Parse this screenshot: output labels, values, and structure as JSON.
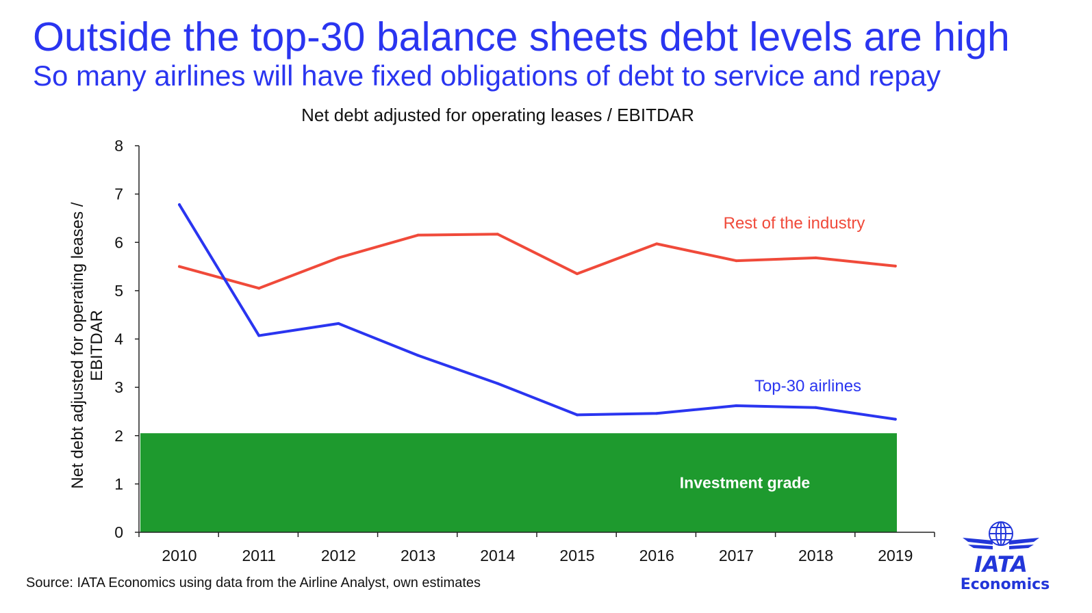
{
  "page": {
    "headline": "Outside the top-30 balance sheets debt levels are high",
    "subheadline": "So many airlines will have fixed obligations of debt to service and repay",
    "source": "Source: IATA Economics using data from the Airline Analyst, own estimates",
    "logo": {
      "text": "IATA",
      "subtext": "Economics",
      "icon": "iata-globe-wings-icon",
      "color": "#2236d9"
    }
  },
  "chart_data": {
    "type": "line",
    "title": "Net debt adjusted for operating leases / EBITDAR",
    "ylabel_lines": [
      "Net debt adjusted for operating leases /",
      "EBITDAR"
    ],
    "xlabel": "",
    "categories": [
      "2010",
      "2011",
      "2012",
      "2013",
      "2014",
      "2015",
      "2016",
      "2017",
      "2018",
      "2019"
    ],
    "ylim": [
      0,
      8
    ],
    "yticks": [
      0,
      1,
      2,
      3,
      4,
      5,
      6,
      7,
      8
    ],
    "grid": false,
    "series": [
      {
        "name": "Rest of the industry",
        "color": "#f04a3a",
        "values": [
          5.5,
          5.05,
          5.68,
          6.15,
          6.17,
          5.35,
          5.97,
          5.62,
          5.68,
          5.51
        ]
      },
      {
        "name": "Top-30 airlines",
        "color": "#2a35f0",
        "values": [
          6.78,
          4.07,
          4.32,
          3.66,
          3.08,
          2.43,
          2.46,
          2.62,
          2.58,
          2.34
        ]
      }
    ],
    "band": {
      "label": "Investment grade",
      "from": 0,
      "to": 2.05,
      "color": "#1e9a2e"
    }
  }
}
